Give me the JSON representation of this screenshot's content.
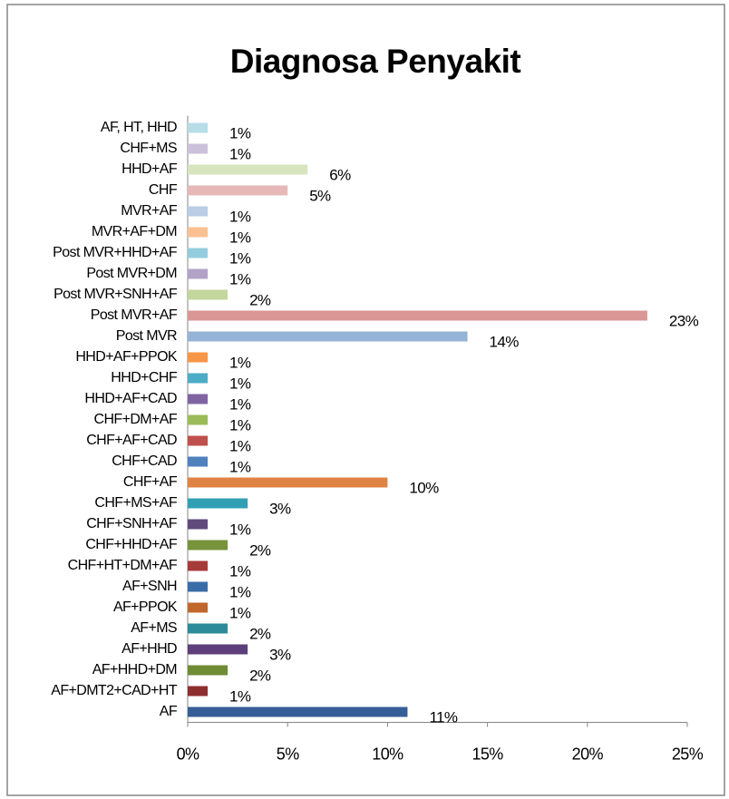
{
  "chart_data": {
    "type": "barh",
    "title": "Diagnosa Penyakit",
    "categories": [
      "AF, HT, HHD",
      "CHF+MS",
      "HHD+AF",
      "CHF",
      "MVR+AF",
      "MVR+AF+DM",
      "Post MVR+HHD+AF",
      "Post MVR+DM",
      "Post MVR+SNH+AF",
      "Post MVR+AF",
      "Post MVR",
      "HHD+AF+PPOK",
      "HHD+CHF",
      "HHD+AF+CAD",
      "CHF+DM+AF",
      "CHF+AF+CAD",
      "CHF+CAD",
      "CHF+AF",
      "CHF+MS+AF",
      "CHF+SNH+AF",
      "CHF+HHD+AF",
      "CHF+HT+DM+AF",
      "AF+SNH",
      "AF+PPOK",
      "AF+MS",
      "AF+HHD",
      "AF+HHD+DM",
      "AF+DMT2+CAD+HT",
      "AF"
    ],
    "values": [
      1,
      1,
      6,
      5,
      1,
      1,
      1,
      1,
      2,
      23,
      14,
      1,
      1,
      1,
      1,
      1,
      1,
      10,
      3,
      1,
      2,
      1,
      1,
      1,
      2,
      3,
      2,
      1,
      11
    ],
    "value_labels": [
      "1%",
      "1%",
      "6%",
      "5%",
      "1%",
      "1%",
      "1%",
      "1%",
      "2%",
      "23%",
      "14%",
      "1%",
      "1%",
      "1%",
      "1%",
      "1%",
      "1%",
      "10%",
      "3%",
      "1%",
      "2%",
      "1%",
      "1%",
      "1%",
      "2%",
      "3%",
      "2%",
      "1%",
      "11%"
    ],
    "colors": [
      "#b7dde8",
      "#ccc1da",
      "#d7e4bd",
      "#e6b9b8",
      "#b9cde5",
      "#fac090",
      "#93cddd",
      "#b3a2c7",
      "#c3d69b",
      "#d99694",
      "#95b3d7",
      "#f79646",
      "#4bacc6",
      "#8064a2",
      "#9bbb59",
      "#c0504d",
      "#4f81bd",
      "#df8344",
      "#31a0b5",
      "#604a7b",
      "#77933c",
      "#a63c3a",
      "#3a6da8",
      "#c0672b",
      "#2e8b9a",
      "#5d3f7c",
      "#6f8b34",
      "#8e2f2f",
      "#365e96"
    ],
    "xlim": [
      0,
      25
    ],
    "xticks": [
      {
        "value": 0,
        "label": "0%"
      },
      {
        "value": 5,
        "label": "5%"
      },
      {
        "value": 10,
        "label": "10%"
      },
      {
        "value": 15,
        "label": "15%"
      },
      {
        "value": 20,
        "label": "20%"
      },
      {
        "value": 25,
        "label": "25%"
      }
    ],
    "grid": false
  }
}
